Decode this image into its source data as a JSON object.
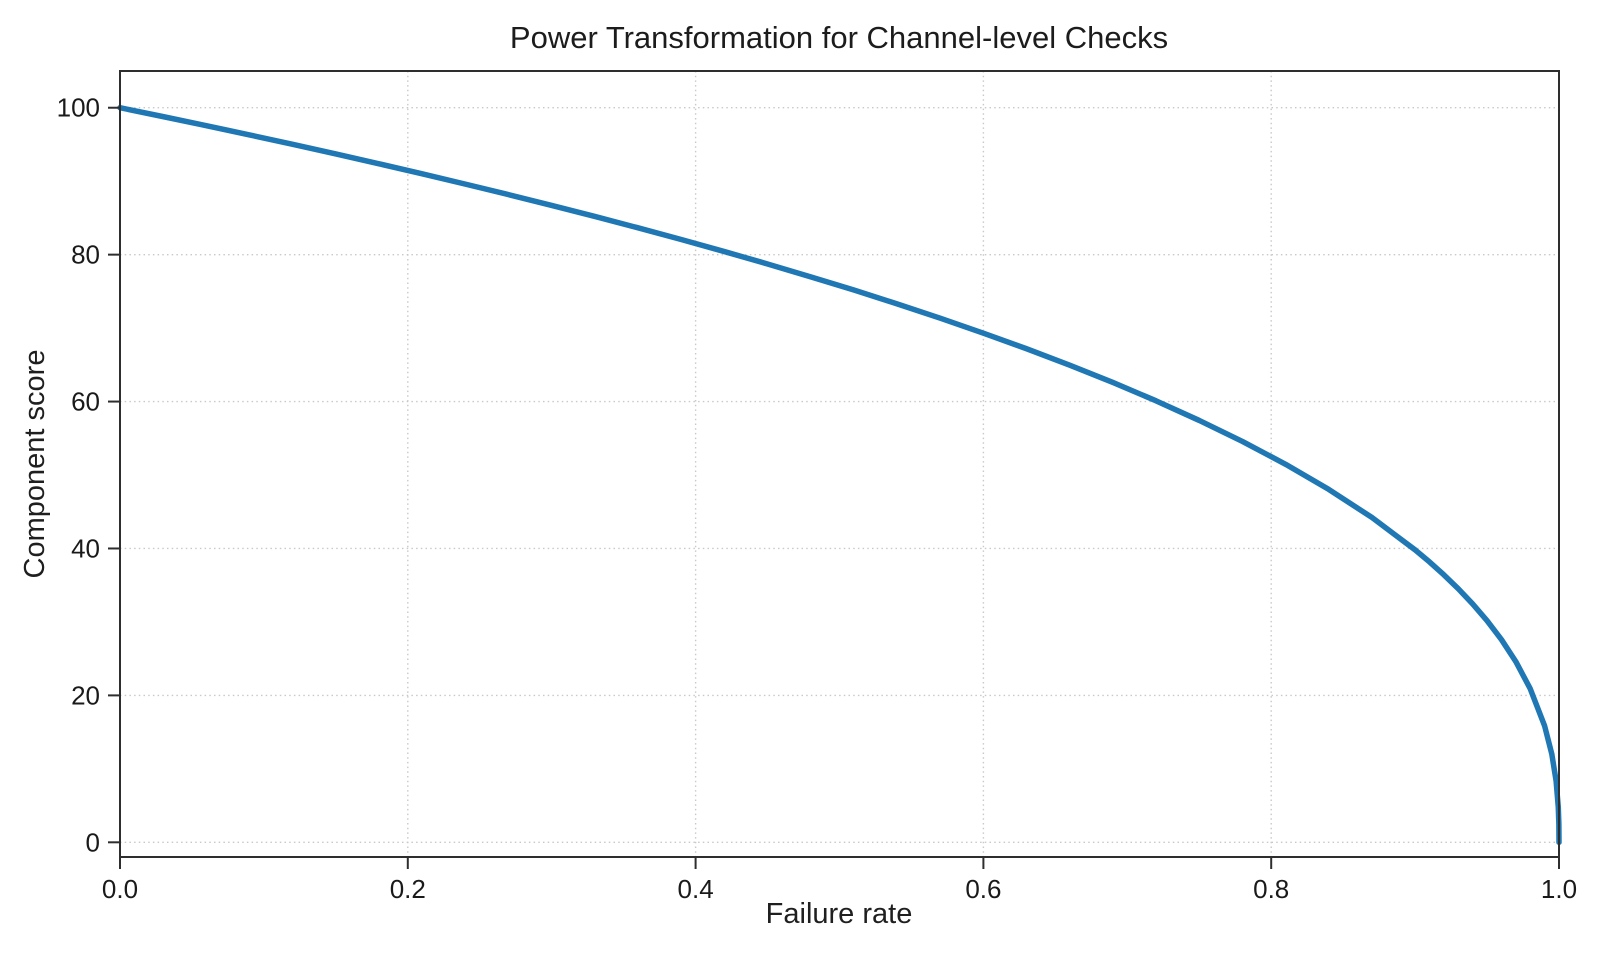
{
  "figure_background": "#ffffff",
  "chart_data": {
    "type": "line",
    "title": "Power Transformation for Channel-level Checks",
    "xlabel": "Failure rate",
    "ylabel": "Component score",
    "xlim": [
      0,
      1
    ],
    "ylim": [
      -2,
      105
    ],
    "grid": "dotted",
    "legend_position": "none",
    "x_ticks": {
      "values": [
        0.0,
        0.2,
        0.4,
        0.6,
        0.8,
        1.0
      ],
      "labels": [
        "0.0",
        "0.2",
        "0.4",
        "0.6",
        "0.8",
        "1.0"
      ]
    },
    "y_ticks": {
      "values": [
        0,
        20,
        40,
        60,
        80,
        100
      ],
      "labels": [
        "0",
        "20",
        "40",
        "60",
        "80",
        "100"
      ]
    },
    "series": [
      {
        "name": "component-score-curve",
        "relation": "y = 100 * (1 - x)^0.4",
        "color": "#1f77b4",
        "line_width": 5.5,
        "points": [
          [
            0.0,
            100.0
          ],
          [
            0.03,
            98.79
          ],
          [
            0.06,
            97.56
          ],
          [
            0.09,
            96.3
          ],
          [
            0.12,
            95.02
          ],
          [
            0.15,
            93.71
          ],
          [
            0.18,
            92.37
          ],
          [
            0.21,
            91.0
          ],
          [
            0.24,
            89.6
          ],
          [
            0.27,
            88.17
          ],
          [
            0.3,
            86.7
          ],
          [
            0.33,
            85.2
          ],
          [
            0.36,
            83.65
          ],
          [
            0.39,
            82.06
          ],
          [
            0.42,
            80.42
          ],
          [
            0.45,
            78.73
          ],
          [
            0.48,
            76.98
          ],
          [
            0.51,
            75.18
          ],
          [
            0.54,
            73.3
          ],
          [
            0.57,
            71.35
          ],
          [
            0.6,
            69.31
          ],
          [
            0.63,
            67.19
          ],
          [
            0.66,
            64.95
          ],
          [
            0.69,
            62.6
          ],
          [
            0.72,
            60.1
          ],
          [
            0.75,
            57.43
          ],
          [
            0.78,
            54.57
          ],
          [
            0.81,
            51.46
          ],
          [
            0.84,
            48.04
          ],
          [
            0.87,
            44.22
          ],
          [
            0.9,
            39.81
          ],
          [
            0.91,
            38.17
          ],
          [
            0.92,
            36.41
          ],
          [
            0.93,
            34.52
          ],
          [
            0.94,
            32.45
          ],
          [
            0.95,
            30.17
          ],
          [
            0.96,
            27.6
          ],
          [
            0.97,
            24.6
          ],
          [
            0.98,
            20.91
          ],
          [
            0.99,
            15.85
          ],
          [
            0.995,
            12.01
          ],
          [
            0.998,
            8.33
          ],
          [
            0.9995,
            4.78
          ],
          [
            0.9999,
            2.51
          ],
          [
            1.0,
            0.0
          ]
        ]
      }
    ]
  }
}
